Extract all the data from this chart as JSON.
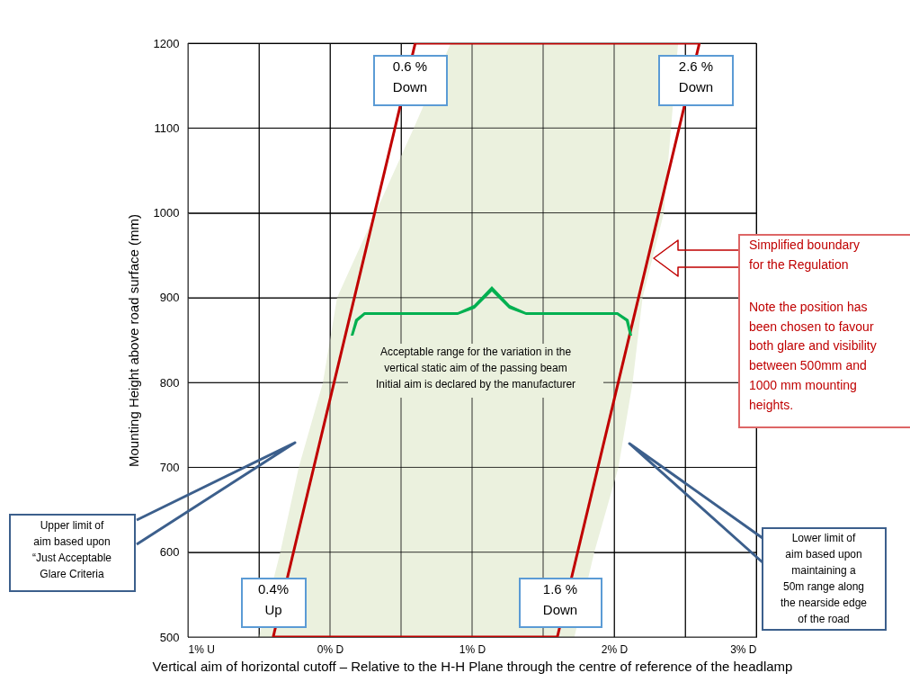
{
  "chart_data": {
    "type": "line",
    "xlabel": "Vertical aim of horizontal cutoff – Relative to the H-H Plane through the centre of reference of the headlamp",
    "ylabel": "Mounting Height above road surface  (mm)",
    "xlim": [
      -1,
      3
    ],
    "ylim": [
      500,
      1200
    ],
    "xticks": [
      {
        "value": -1,
        "label": "1% U"
      },
      {
        "value": -0.5,
        "label": null
      },
      {
        "value": 0,
        "label": "0% D"
      },
      {
        "value": 0.5,
        "label": null
      },
      {
        "value": 1,
        "label": "1% D"
      },
      {
        "value": 1.5,
        "label": null
      },
      {
        "value": 2,
        "label": "2% D"
      },
      {
        "value": 2.5,
        "label": null
      },
      {
        "value": 3,
        "label": "3% D"
      }
    ],
    "yticks": [
      500,
      600,
      700,
      800,
      900,
      1000,
      1100,
      1200
    ],
    "grid": true,
    "series": [
      {
        "type": "area",
        "color": "#ebf1de",
        "x": [
          -0.5,
          -0.35,
          -0.22,
          -0.05,
          0.05,
          0.32,
          0.59,
          0.85,
          1.72,
          1.86,
          2.03,
          2.13,
          2.2,
          2.35,
          2.4,
          2.45
        ],
        "values": [
          null,
          null,
          null,
          null,
          null,
          null,
          null,
          null,
          null,
          null,
          null,
          null,
          null,
          null,
          null,
          null
        ],
        "upper": [
          500,
          600,
          700,
          800,
          900,
          1000,
          1100,
          1200,
          1200,
          1200,
          1200,
          1200,
          1200,
          1200,
          1200,
          1200
        ],
        "lower": [
          500,
          500,
          500,
          500,
          500,
          500,
          500,
          500,
          500,
          600,
          700,
          800,
          900,
          1000,
          1100,
          1200
        ]
      },
      {
        "color": "#c00000",
        "x": [
          -0.4,
          0.6
        ],
        "values": [
          500,
          1200
        ]
      },
      {
        "color": "#c00000",
        "x": [
          0.6,
          2.6
        ],
        "values": [
          1200,
          1200
        ]
      },
      {
        "color": "#c00000",
        "x": [
          1.6,
          2.6
        ],
        "values": [
          500,
          1200
        ]
      },
      {
        "color": "#c00000",
        "x": [
          -0.4,
          1.6
        ],
        "values": [
          500,
          500
        ]
      }
    ],
    "annotations": [
      "0.6 %\nDown",
      "2.6 %\nDown",
      "0.4%\nUp",
      "1.6 %\nDown",
      "Acceptable range for the variation in the\nvertical static aim of the passing beam\nInitial aim is declared by the manufacturer",
      "Simplified boundary\nfor the Regulation",
      "Note the position has\nbeen chosen to favour\nboth glare and visibility\nbetween 500mm and\n1000 mm mounting\nheights.",
      "Upper limit of\naim  based upon\n“Just Acceptable\nGlare Criteria",
      "Lower limit of\naim  based upon\nmaintaining a\n50m range along\nthe nearside edge\nof the road"
    ]
  }
}
